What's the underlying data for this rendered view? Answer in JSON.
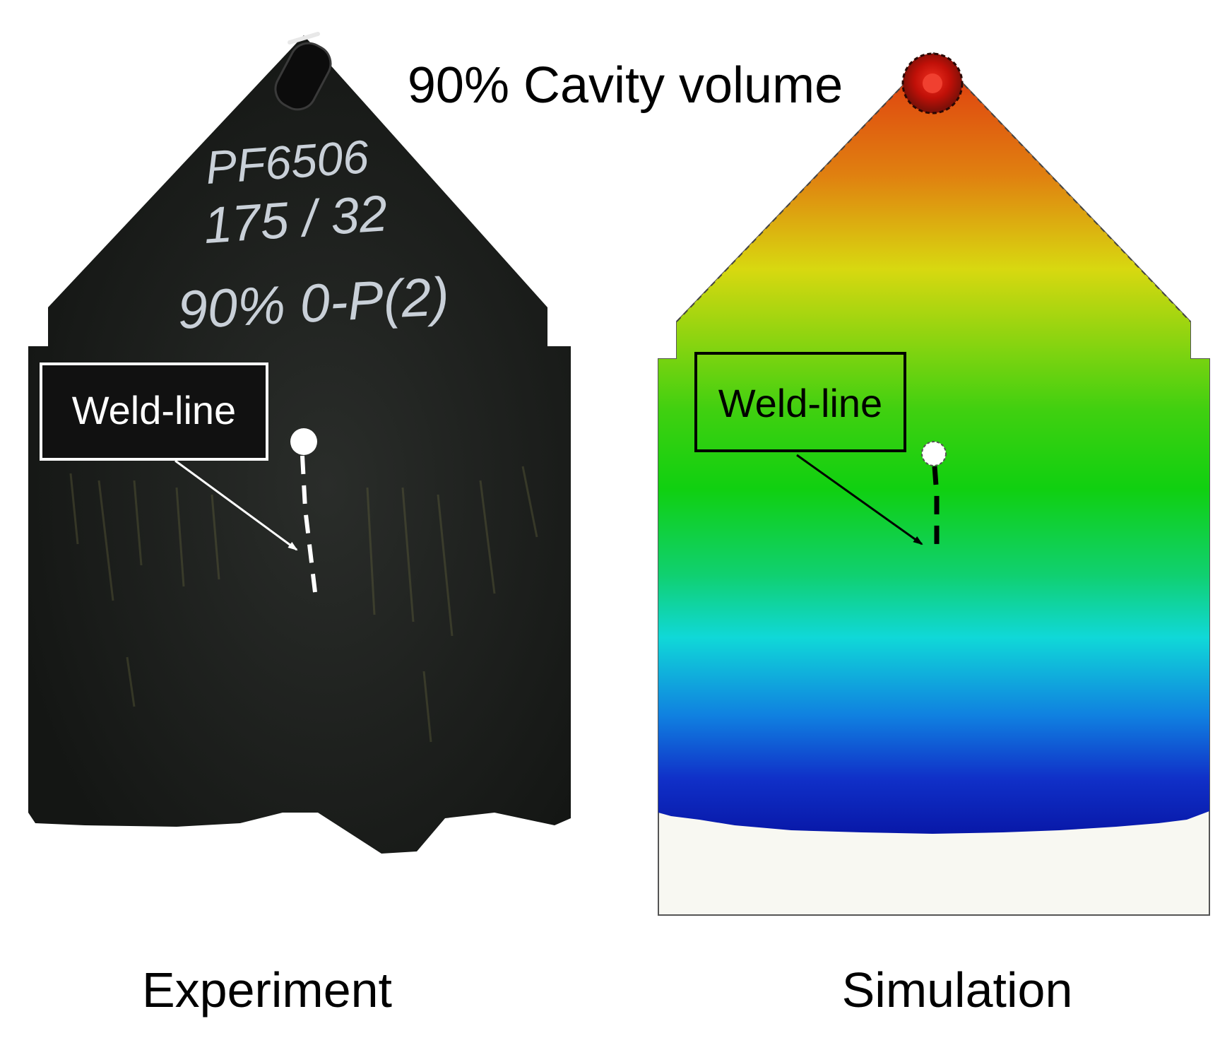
{
  "title": "90% Cavity volume",
  "experiment": {
    "caption": "Experiment",
    "handwriting": [
      "PF6506",
      "175 / 32",
      "90% 0-P(2)"
    ],
    "callout_label": "Weld-line"
  },
  "simulation": {
    "caption": "Simulation",
    "callout_label": "Weld-line"
  },
  "colors": {
    "plate": "#1b1d1b",
    "chalk": "#c9d0d8",
    "sim_red": "#d01810",
    "sim_orange": "#e07010",
    "sim_yellow": "#d8d810",
    "sim_green": "#10d010",
    "sim_cyan": "#10d8d8",
    "sim_blue": "#0818b0",
    "unfilled": "#f8f8f2"
  }
}
